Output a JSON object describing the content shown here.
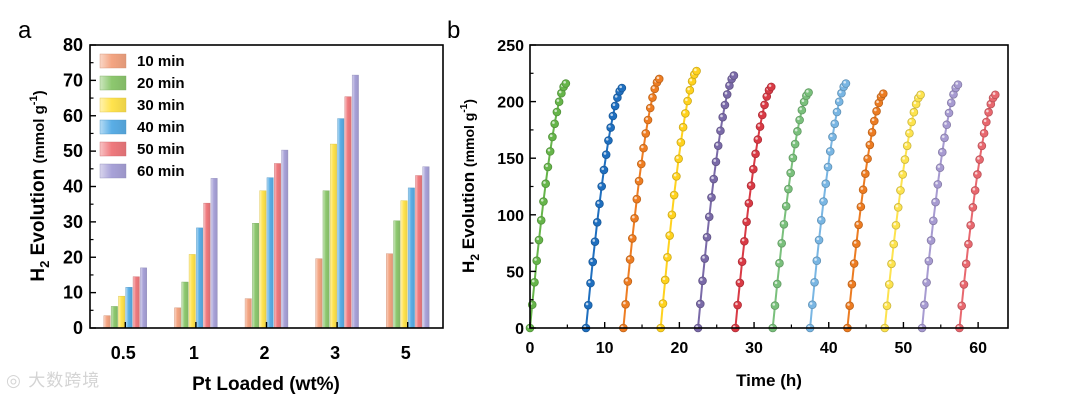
{
  "chart_data": [
    {
      "panel": "a",
      "type": "bar",
      "xlabel": "Pt Loaded (wt%)",
      "ylabel": "H2 Evolution (mmol g-1)",
      "ylim": [
        0,
        80
      ],
      "yticks": [
        "0",
        "10",
        "20",
        "30",
        "40",
        "50",
        "60",
        "70",
        "80"
      ],
      "categories": [
        "0.5",
        "1",
        "2",
        "3",
        "5"
      ],
      "legend_position": "top-left",
      "series": [
        {
          "name": "10 min",
          "color": "#f4a582",
          "values": [
            3.5,
            5.7,
            8.3,
            19.6,
            21.0
          ]
        },
        {
          "name": "20 min",
          "color": "#8dc86f",
          "values": [
            6.1,
            13.0,
            29.6,
            38.8,
            30.3
          ]
        },
        {
          "name": "30 min",
          "color": "#ffe34d",
          "values": [
            9.0,
            20.8,
            38.8,
            52.0,
            36.0
          ]
        },
        {
          "name": "40 min",
          "color": "#5aaee6",
          "values": [
            11.5,
            28.3,
            42.5,
            59.2,
            39.6
          ]
        },
        {
          "name": "50 min",
          "color": "#ef7a7e",
          "values": [
            14.5,
            35.3,
            46.5,
            65.4,
            43.1
          ]
        },
        {
          "name": "60 min",
          "color": "#a8a2d8",
          "values": [
            17.0,
            42.3,
            50.3,
            71.5,
            45.6
          ]
        }
      ]
    },
    {
      "panel": "b",
      "type": "line",
      "xlabel": "Time (h)",
      "ylabel": "H2 Evolution (mmol g-1)",
      "xlim": [
        0,
        64
      ],
      "ylim": [
        0,
        250
      ],
      "xticks": [
        "0",
        "10",
        "20",
        "30",
        "40",
        "50",
        "60"
      ],
      "yticks": [
        "0",
        "50",
        "100",
        "150",
        "200",
        "250"
      ],
      "cycles": [
        {
          "color": "#66b54a",
          "start": 0,
          "max": 216
        },
        {
          "color": "#1f6fbf",
          "start": 7.5,
          "max": 212
        },
        {
          "color": "#ee7d22",
          "start": 12.5,
          "max": 220
        },
        {
          "color": "#ffd21f",
          "start": 17.5,
          "max": 227
        },
        {
          "color": "#7a6aa8",
          "start": 22.5,
          "max": 223
        },
        {
          "color": "#d93a45",
          "start": 27.5,
          "max": 213
        },
        {
          "color": "#7ac07c",
          "start": 32.5,
          "max": 208
        },
        {
          "color": "#79b6e3",
          "start": 37.5,
          "max": 216
        },
        {
          "color": "#ec7c22",
          "start": 42.5,
          "max": 207
        },
        {
          "color": "#fde34f",
          "start": 47.5,
          "max": 206
        },
        {
          "color": "#a79bd1",
          "start": 52.5,
          "max": 215
        },
        {
          "color": "#e8686f",
          "start": 57.5,
          "max": 206
        }
      ]
    }
  ],
  "labels": {
    "panel_a": "a",
    "panel_b": "b",
    "ylabel_main": "H",
    "ylabel_sub": "2",
    "ylabel_rest": " Evolution ",
    "ylabel_unit": "(mmol g",
    "ylabel_sup": "-1",
    "ylabel_close": ")"
  },
  "watermark": "大数跨境"
}
